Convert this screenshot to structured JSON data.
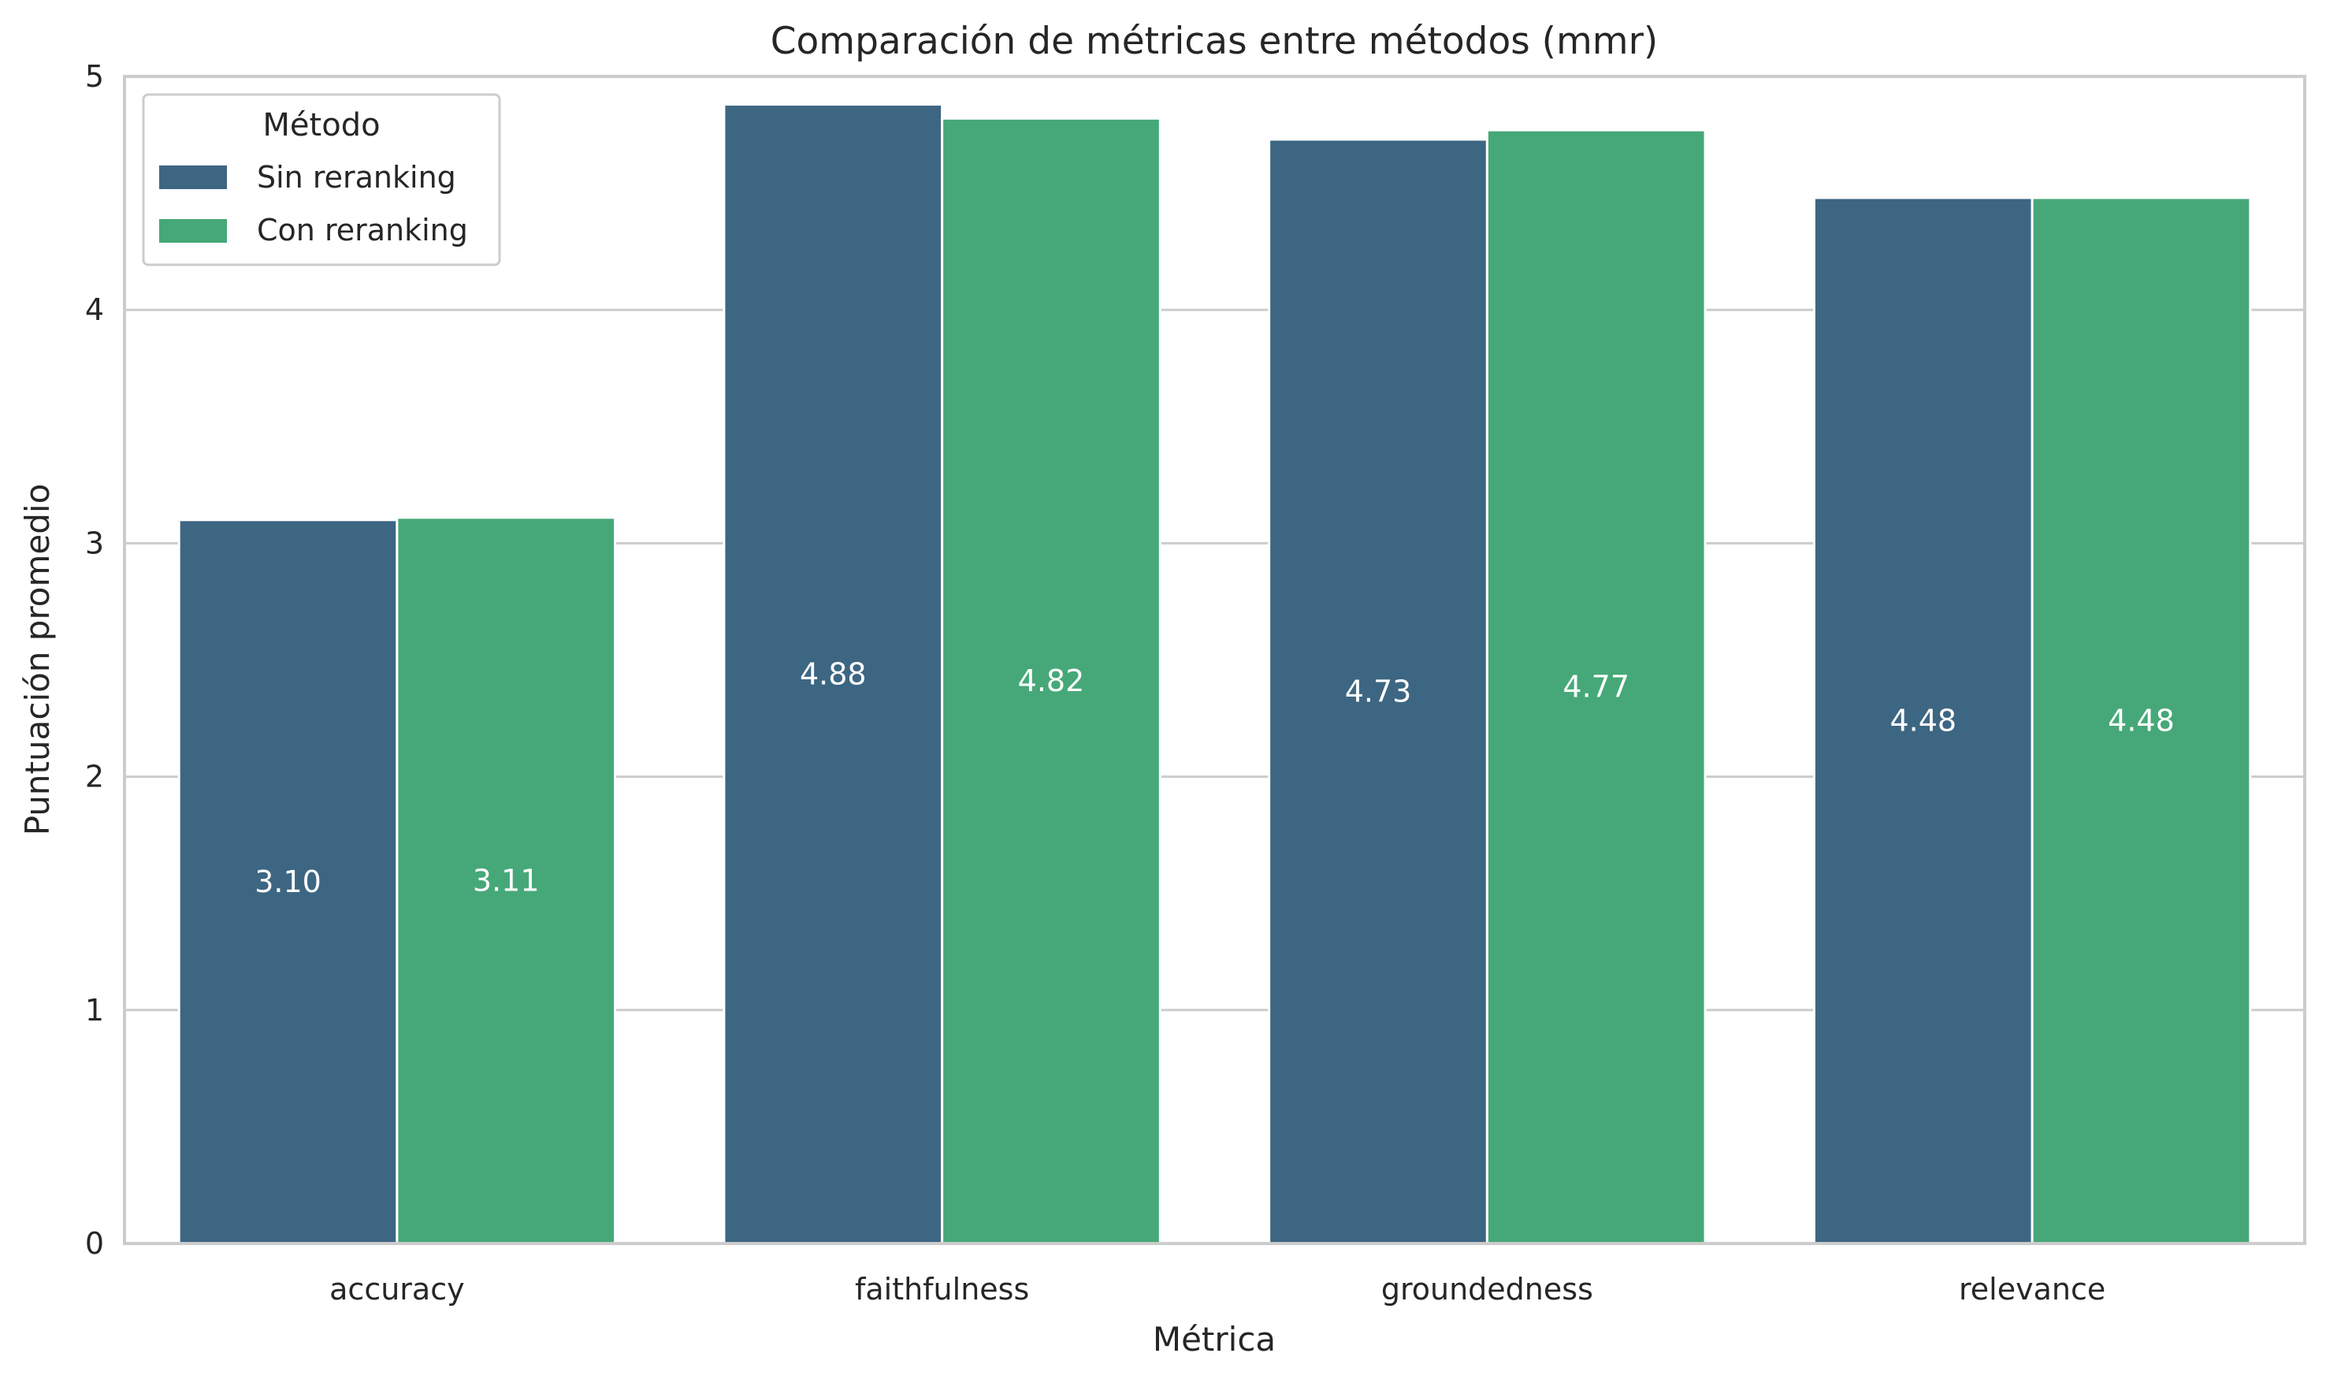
{
  "chart_data": {
    "type": "bar",
    "title": "Comparación de métricas entre métodos (mmr)",
    "xlabel": "Métrica",
    "ylabel": "Puntuación promedio",
    "categories": [
      "accuracy",
      "faithfulness",
      "groundedness",
      "relevance"
    ],
    "series": [
      {
        "name": "Sin reranking",
        "values": [
          3.1,
          4.88,
          4.73,
          4.48
        ],
        "labels": [
          "3.10",
          "4.88",
          "4.73",
          "4.48"
        ],
        "color": "#3d6683"
      },
      {
        "name": "Con reranking",
        "values": [
          3.11,
          4.82,
          4.77,
          4.48
        ],
        "labels": [
          "3.11",
          "4.82",
          "4.77",
          "4.48"
        ],
        "color": "#46a878"
      }
    ],
    "ylim": [
      0,
      5
    ],
    "yticks": [
      "0",
      "1",
      "2",
      "3",
      "4",
      "5"
    ],
    "grid": "horizontal",
    "legend": {
      "title": "Método",
      "position": "top-left"
    },
    "data_label_position": "bar-middle"
  }
}
